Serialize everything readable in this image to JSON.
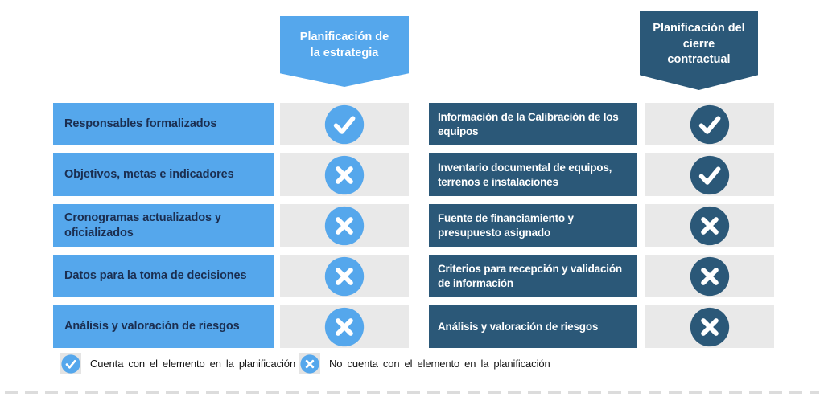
{
  "diagram": {
    "left": {
      "header": "Planificación de\nla estrategia",
      "rows": [
        {
          "label": "Responsables formalizados",
          "status": "check"
        },
        {
          "label": "Objetivos, metas e indicadores",
          "status": "cross"
        },
        {
          "label": "Cronogramas actualizados y oficializados",
          "status": "cross"
        },
        {
          "label": "Datos para la toma de decisiones",
          "status": "cross"
        },
        {
          "label": "Análisis y valoración de riesgos",
          "status": "cross"
        }
      ]
    },
    "right": {
      "header": "Planificación del\ncierre\ncontractual",
      "rows": [
        {
          "label": "Información de la Calibración de los equipos",
          "status": "check"
        },
        {
          "label": "Inventario documental de equipos, terrenos e instalaciones",
          "status": "check"
        },
        {
          "label": "Fuente de financiamiento y presupuesto asignado",
          "status": "cross"
        },
        {
          "label": "Criterios para recepción y validación de información",
          "status": "cross"
        },
        {
          "label": "Análisis y valoración de riesgos",
          "status": "cross"
        }
      ]
    },
    "legend": [
      {
        "status": "check",
        "label": "Cuenta con el elemento en la planificación"
      },
      {
        "status": "cross",
        "label": "No cuenta con el elemento en la planificación"
      }
    ],
    "colors": {
      "light_blue": "#55a7ec",
      "dark_blue": "#2b5878",
      "strip_gray": "#e9e9e9",
      "left_text": "#1b2e50"
    }
  }
}
